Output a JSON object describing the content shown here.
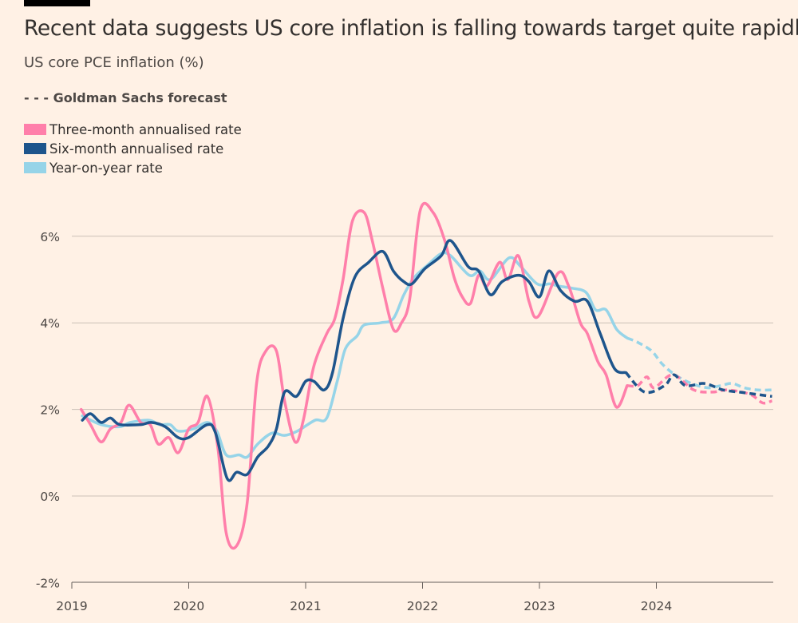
{
  "header": {
    "title": "Recent data suggests US core inflation is falling towards target quite rapidly",
    "subtitle": "US core PCE inflation (%)",
    "forecast_note": "- - - Goldman Sachs forecast"
  },
  "chart_data": {
    "type": "line",
    "title": "Recent data suggests US core inflation is falling towards target quite rapidly",
    "ylabel": "US core PCE inflation (%)",
    "xlim": [
      2019,
      2025
    ],
    "ylim": [
      -2,
      7
    ],
    "x_ticks": [
      "2019",
      "2020",
      "2021",
      "2022",
      "2023",
      "2024"
    ],
    "y_ticks": [
      {
        "value": -2,
        "label": "-2%"
      },
      {
        "value": 0,
        "label": "0%"
      },
      {
        "value": 2,
        "label": "2%"
      },
      {
        "value": 4,
        "label": "4%"
      },
      {
        "value": 6,
        "label": "6%"
      }
    ],
    "grid": true,
    "legend_placement": "top-left",
    "forecast_label": "Goldman Sachs forecast",
    "series": [
      {
        "name": "Three-month annualised rate",
        "color": "#ff7faa",
        "actual": [
          [
            2019.08,
            2.0
          ],
          [
            2019.16,
            1.65
          ],
          [
            2019.25,
            1.25
          ],
          [
            2019.33,
            1.55
          ],
          [
            2019.42,
            1.7
          ],
          [
            2019.49,
            2.1
          ],
          [
            2019.59,
            1.7
          ],
          [
            2019.67,
            1.65
          ],
          [
            2019.74,
            1.2
          ],
          [
            2019.83,
            1.35
          ],
          [
            2019.91,
            1.0
          ],
          [
            2020.0,
            1.55
          ],
          [
            2020.08,
            1.7
          ],
          [
            2020.16,
            2.3
          ],
          [
            2020.25,
            1.1
          ],
          [
            2020.32,
            -0.85
          ],
          [
            2020.41,
            -1.15
          ],
          [
            2020.5,
            -0.15
          ],
          [
            2020.58,
            2.6
          ],
          [
            2020.66,
            3.35
          ],
          [
            2020.75,
            3.35
          ],
          [
            2020.82,
            2.2
          ],
          [
            2020.91,
            1.25
          ],
          [
            2020.98,
            1.75
          ],
          [
            2021.07,
            3.0
          ],
          [
            2021.18,
            3.75
          ],
          [
            2021.25,
            4.1
          ],
          [
            2021.32,
            5.0
          ],
          [
            2021.4,
            6.35
          ],
          [
            2021.5,
            6.55
          ],
          [
            2021.57,
            5.9
          ],
          [
            2021.66,
            4.8
          ],
          [
            2021.75,
            3.85
          ],
          [
            2021.82,
            4.0
          ],
          [
            2021.89,
            4.55
          ],
          [
            2021.98,
            6.6
          ],
          [
            2022.09,
            6.55
          ],
          [
            2022.19,
            5.9
          ],
          [
            2022.27,
            5.05
          ],
          [
            2022.34,
            4.6
          ],
          [
            2022.41,
            4.45
          ],
          [
            2022.48,
            5.1
          ],
          [
            2022.55,
            4.85
          ],
          [
            2022.66,
            5.4
          ],
          [
            2022.73,
            5.0
          ],
          [
            2022.82,
            5.55
          ],
          [
            2022.91,
            4.5
          ],
          [
            2022.99,
            4.15
          ],
          [
            2023.16,
            5.15
          ],
          [
            2023.25,
            4.85
          ],
          [
            2023.35,
            4.0
          ],
          [
            2023.41,
            3.75
          ],
          [
            2023.5,
            3.1
          ],
          [
            2023.57,
            2.8
          ],
          [
            2023.66,
            2.05
          ],
          [
            2023.75,
            2.55
          ]
        ],
        "forecast": [
          [
            2023.75,
            2.55
          ],
          [
            2023.84,
            2.55
          ],
          [
            2023.92,
            2.75
          ],
          [
            2023.98,
            2.5
          ],
          [
            2024.14,
            2.8
          ],
          [
            2024.32,
            2.45
          ],
          [
            2024.48,
            2.4
          ],
          [
            2024.61,
            2.45
          ],
          [
            2024.8,
            2.35
          ],
          [
            2024.91,
            2.15
          ],
          [
            2024.99,
            2.2
          ]
        ]
      },
      {
        "name": "Six-month annualised rate",
        "color": "#1e558c",
        "actual": [
          [
            2019.09,
            1.75
          ],
          [
            2019.16,
            1.9
          ],
          [
            2019.25,
            1.7
          ],
          [
            2019.33,
            1.8
          ],
          [
            2019.41,
            1.65
          ],
          [
            2019.59,
            1.65
          ],
          [
            2019.68,
            1.7
          ],
          [
            2019.8,
            1.6
          ],
          [
            2019.91,
            1.35
          ],
          [
            2020.0,
            1.35
          ],
          [
            2020.16,
            1.65
          ],
          [
            2020.23,
            1.45
          ],
          [
            2020.33,
            0.4
          ],
          [
            2020.41,
            0.55
          ],
          [
            2020.5,
            0.5
          ],
          [
            2020.59,
            0.9
          ],
          [
            2020.68,
            1.15
          ],
          [
            2020.75,
            1.55
          ],
          [
            2020.82,
            2.4
          ],
          [
            2020.92,
            2.3
          ],
          [
            2021.0,
            2.65
          ],
          [
            2021.07,
            2.65
          ],
          [
            2021.16,
            2.45
          ],
          [
            2021.23,
            2.85
          ],
          [
            2021.32,
            4.1
          ],
          [
            2021.42,
            5.05
          ],
          [
            2021.54,
            5.4
          ],
          [
            2021.66,
            5.65
          ],
          [
            2021.75,
            5.2
          ],
          [
            2021.84,
            4.95
          ],
          [
            2021.91,
            4.9
          ],
          [
            2022.02,
            5.25
          ],
          [
            2022.16,
            5.55
          ],
          [
            2022.24,
            5.9
          ],
          [
            2022.39,
            5.3
          ],
          [
            2022.48,
            5.2
          ],
          [
            2022.58,
            4.65
          ],
          [
            2022.68,
            4.95
          ],
          [
            2022.82,
            5.1
          ],
          [
            2022.91,
            4.95
          ],
          [
            2023.0,
            4.6
          ],
          [
            2023.08,
            5.2
          ],
          [
            2023.18,
            4.75
          ],
          [
            2023.3,
            4.5
          ],
          [
            2023.41,
            4.5
          ],
          [
            2023.52,
            3.75
          ],
          [
            2023.64,
            2.95
          ],
          [
            2023.74,
            2.85
          ]
        ],
        "forecast": [
          [
            2023.74,
            2.85
          ],
          [
            2023.9,
            2.4
          ],
          [
            2024.07,
            2.55
          ],
          [
            2024.15,
            2.8
          ],
          [
            2024.25,
            2.55
          ],
          [
            2024.41,
            2.6
          ],
          [
            2024.57,
            2.45
          ],
          [
            2024.71,
            2.4
          ],
          [
            2024.85,
            2.35
          ],
          [
            2024.99,
            2.3
          ]
        ]
      },
      {
        "name": "Year-on-year rate",
        "color": "#96d4e8",
        "actual": [
          [
            2019.09,
            1.85
          ],
          [
            2019.25,
            1.65
          ],
          [
            2019.41,
            1.6
          ],
          [
            2019.5,
            1.7
          ],
          [
            2019.66,
            1.75
          ],
          [
            2019.75,
            1.65
          ],
          [
            2019.84,
            1.65
          ],
          [
            2019.91,
            1.5
          ],
          [
            2020.04,
            1.55
          ],
          [
            2020.16,
            1.7
          ],
          [
            2020.24,
            1.5
          ],
          [
            2020.32,
            0.95
          ],
          [
            2020.43,
            0.95
          ],
          [
            2020.5,
            0.9
          ],
          [
            2020.59,
            1.2
          ],
          [
            2020.71,
            1.45
          ],
          [
            2020.82,
            1.4
          ],
          [
            2020.93,
            1.5
          ],
          [
            2021.08,
            1.75
          ],
          [
            2021.18,
            1.8
          ],
          [
            2021.27,
            2.65
          ],
          [
            2021.34,
            3.4
          ],
          [
            2021.44,
            3.7
          ],
          [
            2021.5,
            3.95
          ],
          [
            2021.64,
            4.0
          ],
          [
            2021.75,
            4.1
          ],
          [
            2021.84,
            4.65
          ],
          [
            2021.93,
            5.05
          ],
          [
            2022.05,
            5.35
          ],
          [
            2022.16,
            5.6
          ],
          [
            2022.24,
            5.55
          ],
          [
            2022.4,
            5.1
          ],
          [
            2022.49,
            5.2
          ],
          [
            2022.58,
            5.0
          ],
          [
            2022.74,
            5.5
          ],
          [
            2022.84,
            5.3
          ],
          [
            2022.98,
            4.9
          ],
          [
            2023.09,
            4.9
          ],
          [
            2023.16,
            4.85
          ],
          [
            2023.28,
            4.8
          ],
          [
            2023.4,
            4.7
          ],
          [
            2023.48,
            4.3
          ],
          [
            2023.57,
            4.3
          ],
          [
            2023.66,
            3.85
          ],
          [
            2023.75,
            3.65
          ]
        ],
        "forecast": [
          [
            2023.75,
            3.65
          ],
          [
            2023.84,
            3.55
          ],
          [
            2023.96,
            3.35
          ],
          [
            2024.05,
            3.05
          ],
          [
            2024.16,
            2.8
          ],
          [
            2024.3,
            2.6
          ],
          [
            2024.44,
            2.5
          ],
          [
            2024.55,
            2.55
          ],
          [
            2024.65,
            2.6
          ],
          [
            2024.75,
            2.5
          ],
          [
            2024.87,
            2.45
          ],
          [
            2024.99,
            2.45
          ]
        ]
      }
    ]
  }
}
